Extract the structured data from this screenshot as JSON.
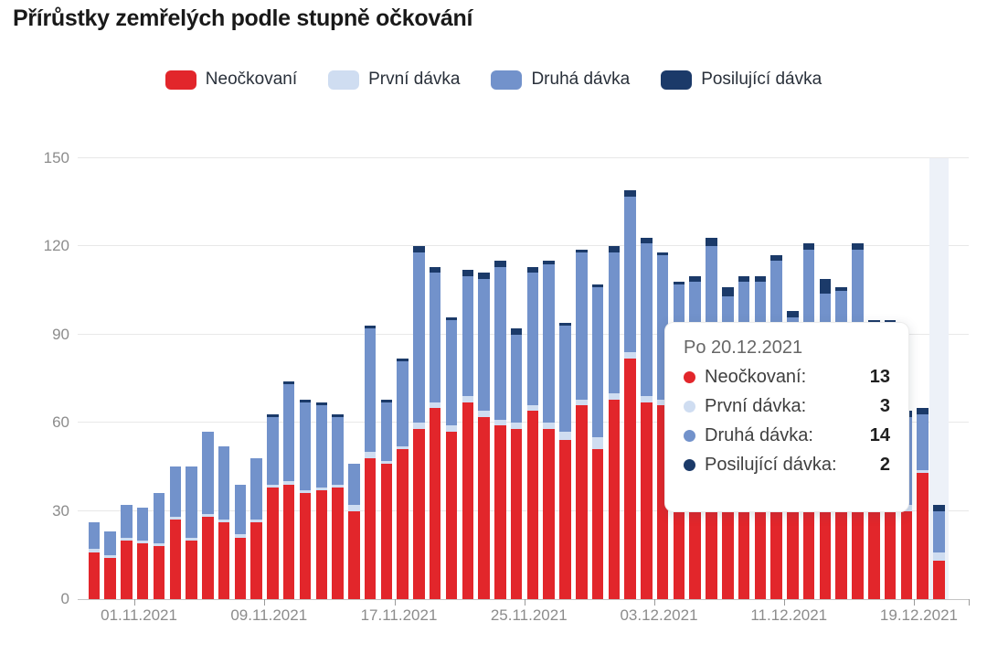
{
  "title": "Přírůstky zemřelých podle stupně očkování",
  "colors": {
    "neockovani": "#e2262b",
    "prvni_davka": "#cfddf1",
    "druha_davka": "#7292cb",
    "posilujici_davka": "#1b3a69",
    "highlight_band": "#edf1f8",
    "grid": "#e8e8e8",
    "axis": "#c4c4c4",
    "axis_text": "#8c8c8c"
  },
  "legend": [
    {
      "label": "Neočkovaní",
      "color": "#e2262b"
    },
    {
      "label": "První dávka",
      "color": "#cfddf1"
    },
    {
      "label": "Druhá dávka",
      "color": "#7292cb"
    },
    {
      "label": "Posilující dávka",
      "color": "#1b3a69"
    }
  ],
  "tooltip": {
    "date_label": "Po 20.12.2021",
    "rows": [
      {
        "label": "Neočkovaní:",
        "value": "13",
        "color": "#e2262b"
      },
      {
        "label": "První dávka:",
        "value": "3",
        "color": "#cfddf1"
      },
      {
        "label": "Druhá dávka:",
        "value": "14",
        "color": "#7292cb"
      },
      {
        "label": "Posilující dávka:",
        "value": "2",
        "color": "#1b3a69"
      }
    ]
  },
  "chart_data": {
    "type": "bar",
    "stacked": true,
    "title": "Přírůstky zemřelých podle stupně očkování",
    "xlabel": "",
    "ylabel": "",
    "ylim": [
      0,
      150
    ],
    "yticks": [
      0,
      30,
      60,
      90,
      120,
      150
    ],
    "grid": true,
    "legend_position": "top",
    "highlighted_index": 52,
    "categories": [
      "29.10.2021",
      "30.10.2021",
      "31.10.2021",
      "01.11.2021",
      "02.11.2021",
      "03.11.2021",
      "04.11.2021",
      "05.11.2021",
      "06.11.2021",
      "07.11.2021",
      "08.11.2021",
      "09.11.2021",
      "10.11.2021",
      "11.11.2021",
      "12.11.2021",
      "13.11.2021",
      "14.11.2021",
      "15.11.2021",
      "16.11.2021",
      "17.11.2021",
      "18.11.2021",
      "19.11.2021",
      "20.11.2021",
      "21.11.2021",
      "22.11.2021",
      "23.11.2021",
      "24.11.2021",
      "25.11.2021",
      "26.11.2021",
      "27.11.2021",
      "28.11.2021",
      "29.11.2021",
      "30.11.2021",
      "01.12.2021",
      "02.12.2021",
      "03.12.2021",
      "04.12.2021",
      "05.12.2021",
      "06.12.2021",
      "07.12.2021",
      "08.12.2021",
      "09.12.2021",
      "10.12.2021",
      "11.12.2021",
      "12.12.2021",
      "13.12.2021",
      "14.12.2021",
      "15.12.2021",
      "16.12.2021",
      "17.12.2021",
      "18.12.2021",
      "19.12.2021",
      "20.12.2021"
    ],
    "xtick_labels": [
      "01.11.2021",
      "09.11.2021",
      "17.11.2021",
      "25.11.2021",
      "03.12.2021",
      "11.12.2021",
      "19.12.2021"
    ],
    "xtick_indices": [
      3,
      11,
      19,
      27,
      35,
      43,
      51
    ],
    "series": [
      {
        "name": "Neočkovaní",
        "color": "#e2262b",
        "values": [
          16,
          14,
          20,
          19,
          18,
          27,
          20,
          28,
          26,
          21,
          26,
          38,
          39,
          36,
          37,
          38,
          30,
          48,
          46,
          51,
          58,
          65,
          57,
          67,
          62,
          59,
          58,
          64,
          58,
          54,
          66,
          51,
          68,
          82,
          67,
          66,
          52,
          55,
          60,
          52,
          54,
          55,
          58,
          48,
          58,
          52,
          50,
          56,
          45,
          44,
          30,
          43,
          13
        ]
      },
      {
        "name": "První dávka",
        "color": "#cfddf1",
        "values": [
          1,
          1,
          1,
          1,
          1,
          1,
          1,
          1,
          1,
          1,
          1,
          1,
          1,
          1,
          1,
          1,
          2,
          2,
          1,
          1,
          2,
          2,
          2,
          2,
          2,
          2,
          2,
          2,
          2,
          3,
          2,
          4,
          2,
          2,
          2,
          2,
          2,
          2,
          2,
          2,
          2,
          2,
          2,
          2,
          2,
          3,
          2,
          2,
          2,
          2,
          2,
          1,
          3
        ]
      },
      {
        "name": "Druhá dávka",
        "color": "#7292cb",
        "values": [
          9,
          8,
          11,
          11,
          17,
          17,
          24,
          28,
          25,
          17,
          21,
          23,
          33,
          30,
          28,
          23,
          14,
          42,
          20,
          29,
          58,
          44,
          36,
          41,
          45,
          52,
          30,
          45,
          54,
          36,
          50,
          51,
          48,
          53,
          52,
          49,
          53,
          51,
          58,
          49,
          52,
          51,
          55,
          46,
          59,
          49,
          53,
          61,
          46,
          47,
          30,
          19,
          14
        ]
      },
      {
        "name": "Posilující dávka",
        "color": "#1b3a69",
        "values": [
          0,
          0,
          0,
          0,
          0,
          0,
          0,
          0,
          0,
          0,
          0,
          1,
          1,
          1,
          1,
          1,
          0,
          1,
          1,
          1,
          2,
          2,
          1,
          2,
          2,
          2,
          2,
          2,
          1,
          1,
          1,
          1,
          2,
          2,
          2,
          1,
          1,
          2,
          3,
          3,
          2,
          2,
          2,
          2,
          2,
          5,
          1,
          2,
          2,
          2,
          2,
          2,
          2
        ]
      }
    ]
  }
}
